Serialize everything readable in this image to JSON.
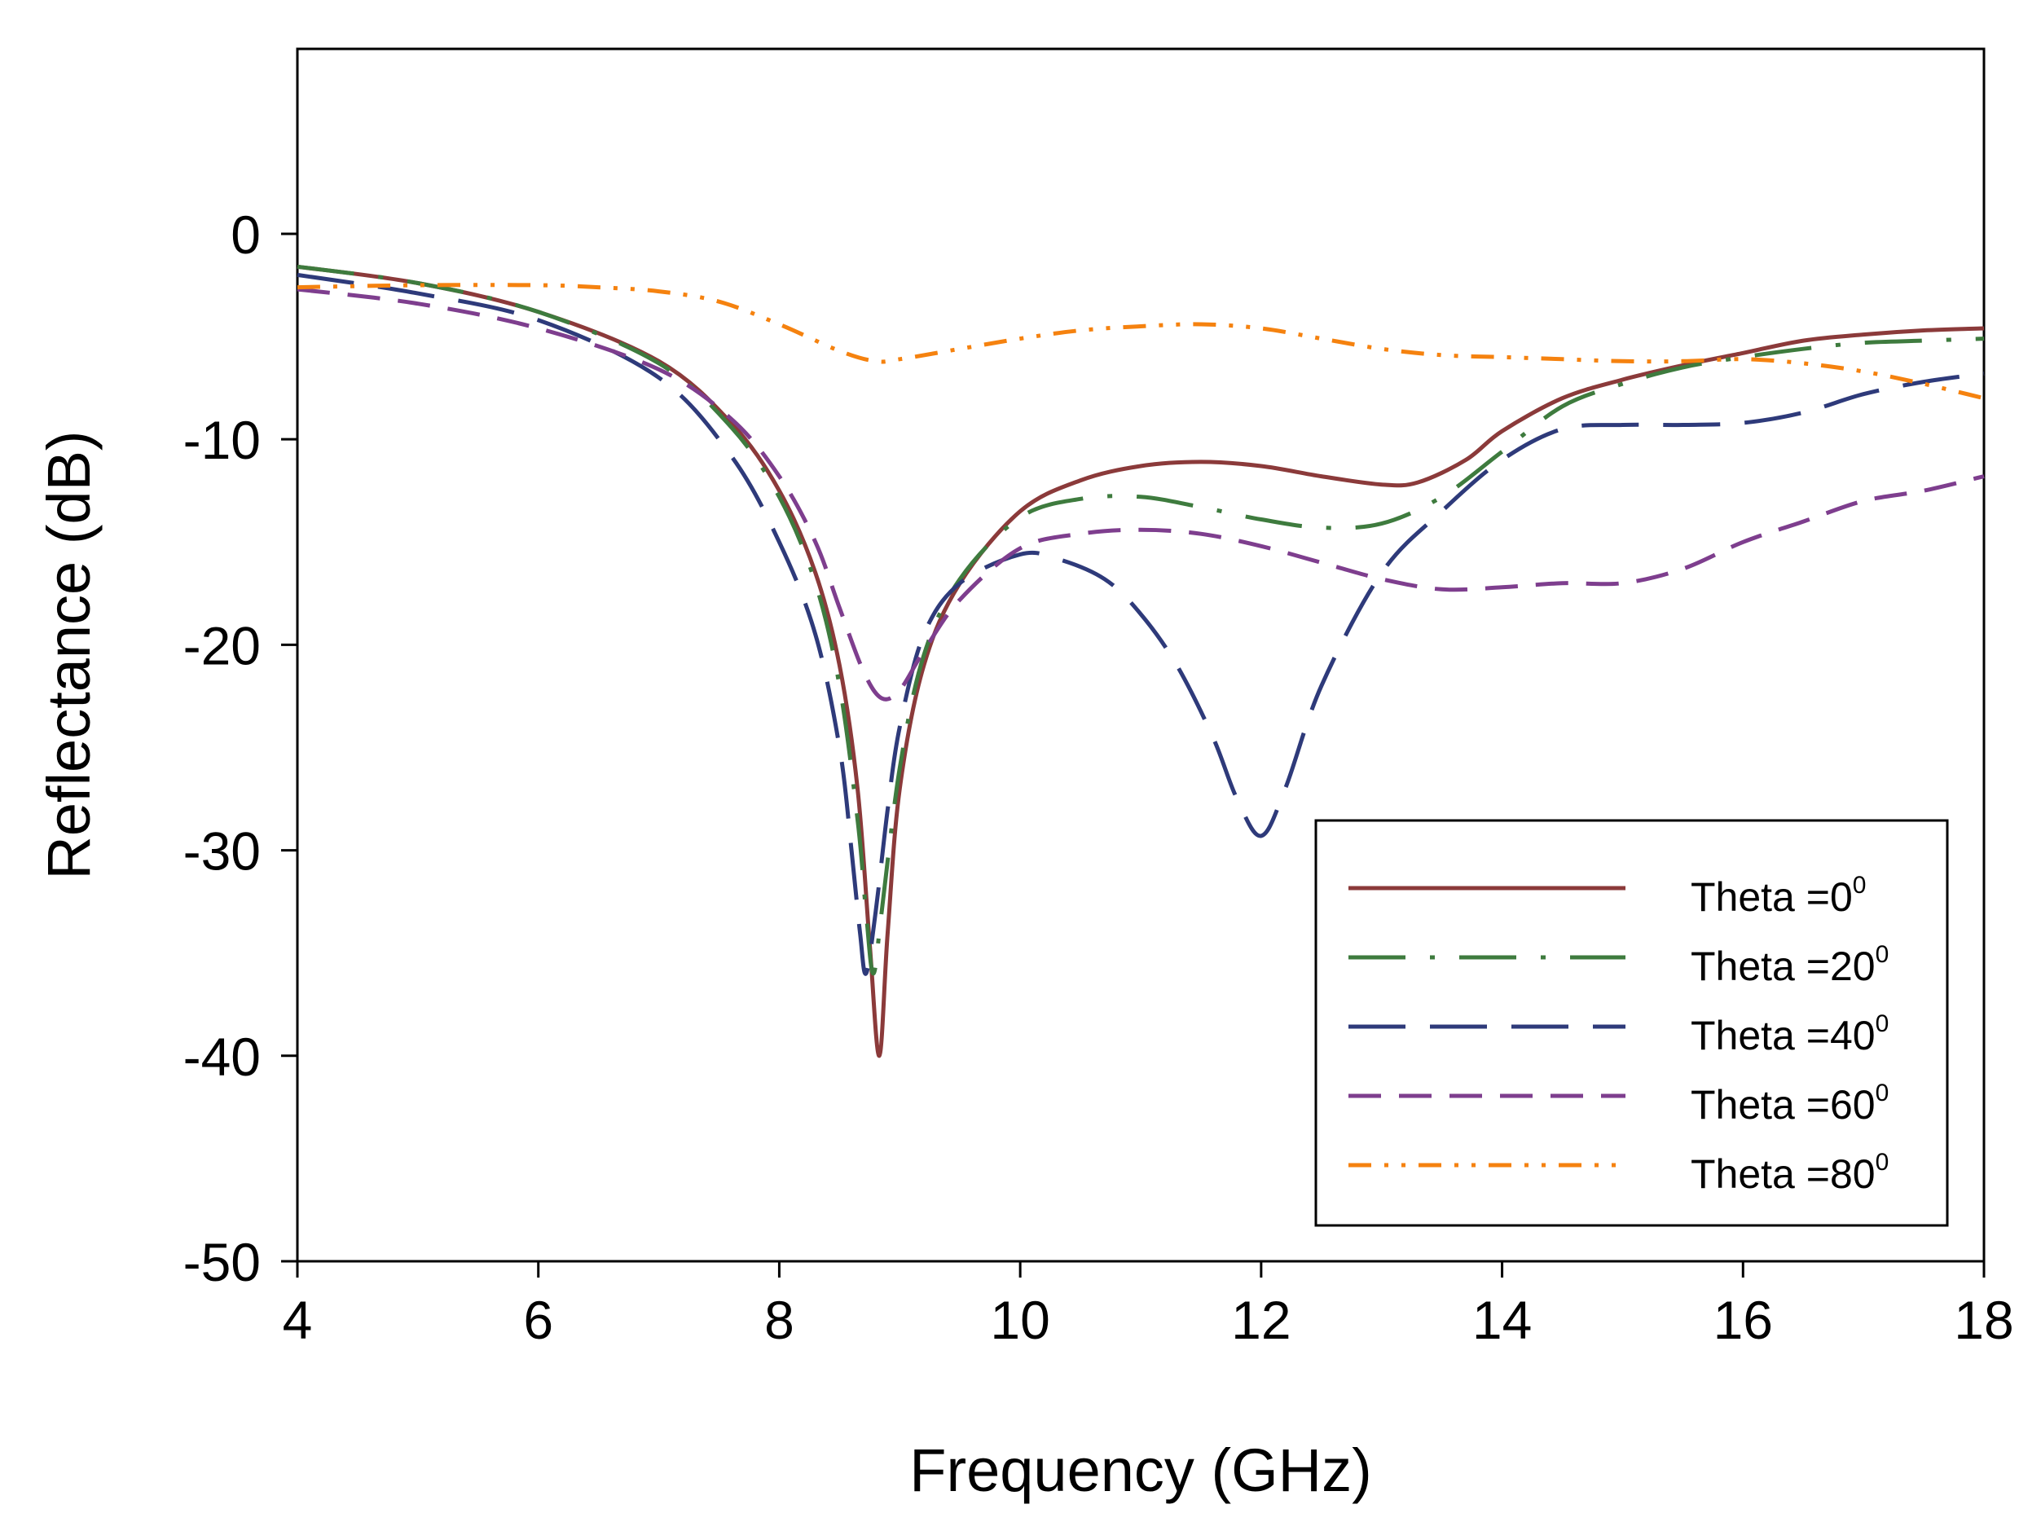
{
  "chart_data": {
    "type": "line",
    "title": "",
    "xlabel": "Frequency (GHz)",
    "ylabel": "Reflectance (dB)",
    "xlim": [
      4,
      18
    ],
    "ylim": [
      -50,
      9
    ],
    "xticks": [
      4,
      6,
      8,
      10,
      12,
      14,
      16,
      18
    ],
    "yticks": [
      0,
      -10,
      -20,
      -30,
      -40,
      -50
    ],
    "grid": false,
    "legend_position": "bottom-right",
    "series": [
      {
        "name": "Theta =0",
        "label_base": "Theta =0",
        "label_sup": "0",
        "color": "#8B3A3A",
        "style": "solid",
        "x": [
          4.0,
          5.0,
          6.0,
          7.0,
          7.6,
          8.0,
          8.3,
          8.5,
          8.65,
          8.75,
          8.83,
          8.9,
          9.0,
          9.2,
          9.5,
          10.0,
          10.5,
          11.0,
          11.5,
          12.0,
          12.5,
          13.0,
          13.3,
          13.7,
          14.0,
          14.5,
          15.0,
          15.5,
          16.0,
          16.5,
          17.0,
          17.5,
          18.0
        ],
        "y": [
          -1.6,
          -2.4,
          -3.8,
          -6.2,
          -9.2,
          -12.5,
          -16.5,
          -21.0,
          -27.0,
          -34.5,
          -40.0,
          -34.0,
          -27.0,
          -21.0,
          -17.0,
          -13.5,
          -12.0,
          -11.3,
          -11.1,
          -11.3,
          -11.8,
          -12.2,
          -12.1,
          -11.0,
          -9.6,
          -8.0,
          -7.1,
          -6.4,
          -5.8,
          -5.2,
          -4.9,
          -4.7,
          -4.6
        ]
      },
      {
        "name": "Theta =20",
        "label_base": "Theta =20",
        "label_sup": "0",
        "color": "#3E7B3E",
        "style": "long-dash-dot",
        "x": [
          4.0,
          5.0,
          6.0,
          7.0,
          7.6,
          8.0,
          8.3,
          8.5,
          8.65,
          8.72,
          8.78,
          8.85,
          9.0,
          9.2,
          9.5,
          10.0,
          10.5,
          11.0,
          11.5,
          12.0,
          12.5,
          13.0,
          13.5,
          14.0,
          14.5,
          15.0,
          15.5,
          16.0,
          16.5,
          17.0,
          17.5,
          18.0
        ],
        "y": [
          -1.6,
          -2.4,
          -3.8,
          -6.3,
          -9.4,
          -12.8,
          -17.0,
          -22.0,
          -28.5,
          -33.0,
          -36.0,
          -33.0,
          -26.0,
          -20.5,
          -16.8,
          -13.8,
          -12.9,
          -12.8,
          -13.3,
          -13.9,
          -14.3,
          -14.1,
          -12.8,
          -10.6,
          -8.4,
          -7.3,
          -6.5,
          -6.0,
          -5.6,
          -5.3,
          -5.2,
          -5.1
        ]
      },
      {
        "name": "Theta =40",
        "label_base": "Theta =40",
        "label_sup": "0",
        "color": "#2E3A7A",
        "style": "long-dash",
        "x": [
          4.0,
          5.0,
          6.0,
          7.0,
          7.6,
          8.0,
          8.3,
          8.5,
          8.6,
          8.67,
          8.72,
          8.8,
          8.9,
          9.0,
          9.2,
          9.5,
          10.0,
          10.3,
          10.7,
          11.0,
          11.3,
          11.6,
          11.8,
          12.0,
          12.2,
          12.5,
          13.0,
          13.5,
          14.0,
          14.5,
          15.0,
          15.5,
          16.0,
          16.5,
          17.0,
          17.5,
          18.0
        ],
        "y": [
          -2.0,
          -2.9,
          -4.2,
          -7.0,
          -10.8,
          -15.0,
          -19.5,
          -25.0,
          -30.0,
          -34.0,
          -36.0,
          -33.0,
          -28.0,
          -24.0,
          -19.5,
          -17.0,
          -15.6,
          -15.8,
          -16.8,
          -18.5,
          -21.0,
          -24.5,
          -27.5,
          -29.3,
          -27.0,
          -22.0,
          -16.5,
          -13.5,
          -11.0,
          -9.5,
          -9.3,
          -9.3,
          -9.2,
          -8.7,
          -7.8,
          -7.2,
          -6.8
        ]
      },
      {
        "name": "Theta =60",
        "label_base": "Theta =60",
        "label_sup": "0",
        "color": "#7E3E8E",
        "style": "short-dash",
        "x": [
          4.0,
          5.0,
          6.0,
          7.0,
          7.6,
          8.0,
          8.3,
          8.5,
          8.7,
          8.85,
          9.0,
          9.2,
          9.5,
          10.0,
          10.5,
          11.0,
          11.5,
          12.0,
          12.5,
          13.0,
          13.5,
          14.0,
          14.5,
          15.0,
          15.5,
          16.0,
          16.5,
          17.0,
          17.5,
          18.0
        ],
        "y": [
          -2.7,
          -3.4,
          -4.6,
          -6.6,
          -9.0,
          -11.8,
          -15.0,
          -18.2,
          -21.3,
          -22.6,
          -22.2,
          -20.3,
          -17.8,
          -15.3,
          -14.6,
          -14.4,
          -14.6,
          -15.2,
          -16.0,
          -16.8,
          -17.3,
          -17.2,
          -17.0,
          -17.0,
          -16.3,
          -15.0,
          -14.0,
          -13.0,
          -12.5,
          -11.8
        ]
      },
      {
        "name": "Theta =80",
        "label_base": "Theta =80",
        "label_sup": "0",
        "color": "#F5820F",
        "style": "dash-dot-dot",
        "x": [
          4.0,
          5.0,
          6.0,
          6.5,
          7.0,
          7.5,
          8.0,
          8.5,
          8.8,
          9.0,
          9.5,
          10.0,
          10.5,
          11.0,
          11.5,
          12.0,
          12.5,
          13.0,
          13.5,
          14.0,
          14.5,
          15.0,
          15.5,
          16.0,
          16.5,
          17.0,
          17.5,
          18.0
        ],
        "y": [
          -2.6,
          -2.5,
          -2.5,
          -2.6,
          -2.8,
          -3.3,
          -4.4,
          -5.7,
          -6.2,
          -6.1,
          -5.6,
          -5.1,
          -4.7,
          -4.5,
          -4.4,
          -4.6,
          -5.1,
          -5.6,
          -5.9,
          -6.0,
          -6.1,
          -6.2,
          -6.2,
          -6.1,
          -6.3,
          -6.7,
          -7.3,
          -8.0
        ]
      }
    ]
  }
}
